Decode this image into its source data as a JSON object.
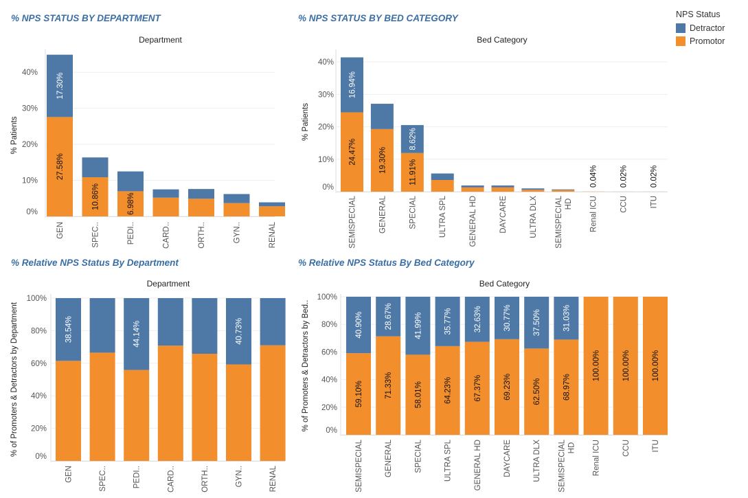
{
  "colors": {
    "detractor": "#4e79a7",
    "promotor": "#f28e2b"
  },
  "legend": {
    "title": "NPS Status",
    "items": [
      "Detractor",
      "Promotor"
    ]
  },
  "panels": {
    "p1_title": "% NPS STATUS BY DEPARTMENT",
    "p2_title": "% NPS STATUS BY BED CATEGORY",
    "p3_title": "% Relative NPS Status By Department",
    "p4_title": "% Relative NPS Status By Bed Category"
  },
  "chart_data": [
    {
      "type": "bar",
      "stacked": true,
      "title": "% NPS STATUS BY DEPARTMENT",
      "xlabel": "Department",
      "ylabel": "% Patients",
      "ylim": [
        0,
        45
      ],
      "yticks": [
        "0%",
        "10%",
        "20%",
        "30%",
        "40%"
      ],
      "categories": [
        "GEN",
        "SPEC..",
        "PEDI..",
        "CARD..",
        "ORTH..",
        "GYN..",
        "RENAL"
      ],
      "series": [
        {
          "name": "Promotor",
          "values": [
            27.58,
            10.86,
            6.98,
            5.2,
            4.9,
            3.7,
            2.8
          ]
        },
        {
          "name": "Detractor",
          "values": [
            17.3,
            5.5,
            5.5,
            2.3,
            2.7,
            2.5,
            1.1
          ]
        }
      ],
      "labels": {
        "Promotor": [
          "27.58%",
          "10.86%",
          "6.98%",
          "",
          "",
          "",
          ""
        ],
        "Detractor": [
          "17.30%",
          "",
          "",
          "",
          "",
          "",
          ""
        ]
      }
    },
    {
      "type": "bar",
      "stacked": true,
      "title": "% NPS STATUS BY BED CATEGORY",
      "xlabel": "Bed Category",
      "ylabel": "% Patients",
      "ylim": [
        0,
        43
      ],
      "yticks": [
        "0%",
        "10%",
        "20%",
        "30%",
        "40%"
      ],
      "categories": [
        "SEMISPECIAL",
        "GENERAL",
        "SPECIAL",
        "ULTRA SPL",
        "GENERAL HD",
        "DAYCARE",
        "ULTRA DLX",
        "SEMISPECIAL HD",
        "Renal ICU",
        "CCU",
        "ITU"
      ],
      "series": [
        {
          "name": "Promotor",
          "values": [
            24.47,
            19.3,
            11.91,
            3.6,
            1.3,
            1.3,
            0.6,
            0.5,
            0.04,
            0.02,
            0.02
          ]
        },
        {
          "name": "Detractor",
          "values": [
            16.94,
            7.8,
            8.62,
            2.0,
            0.6,
            0.6,
            0.4,
            0.2,
            0,
            0,
            0
          ]
        }
      ],
      "labels": {
        "Promotor": [
          "24.47%",
          "19.30%",
          "11.91%",
          "",
          "",
          "",
          "",
          "",
          "0.04%",
          "0.02%",
          "0.02%"
        ],
        "Detractor": [
          "16.94%",
          "",
          "8.62%",
          "",
          "",
          "",
          "",
          "",
          "",
          "",
          ""
        ]
      }
    },
    {
      "type": "bar",
      "stacked": true,
      "title": "% Relative NPS Status By Department",
      "xlabel": "Department",
      "ylabel": "% of Promoters & Detractors by Department",
      "ylim": [
        0,
        100
      ],
      "yticks": [
        "0%",
        "20%",
        "40%",
        "60%",
        "80%",
        "100%"
      ],
      "categories": [
        "GEN",
        "SPEC..",
        "PEDI..",
        "CARD..",
        "ORTH..",
        "GYN..",
        "RENAL"
      ],
      "series": [
        {
          "name": "Promotor",
          "values": [
            61.46,
            66.5,
            55.86,
            70.8,
            65.8,
            59.27,
            71.0
          ]
        },
        {
          "name": "Detractor",
          "values": [
            38.54,
            33.5,
            44.14,
            29.2,
            34.2,
            40.73,
            29.0
          ]
        }
      ],
      "labels": {
        "Promotor": [
          "",
          "",
          "",
          "",
          "",
          "",
          ""
        ],
        "Detractor": [
          "38.54%",
          "",
          "44.14%",
          "",
          "",
          "40.73%",
          ""
        ]
      }
    },
    {
      "type": "bar",
      "stacked": true,
      "title": "% Relative NPS Status By Bed Category",
      "xlabel": "Bed Category",
      "ylabel": "% of Promoters & Detractors by Bed..",
      "ylim": [
        0,
        100
      ],
      "yticks": [
        "0%",
        "20%",
        "40%",
        "60%",
        "80%",
        "100%"
      ],
      "categories": [
        "SEMISPECIAL",
        "GENERAL",
        "SPECIAL",
        "ULTRA SPL",
        "GENERAL HD",
        "DAYCARE",
        "ULTRA DLX",
        "SEMISPECIAL HD",
        "Renal ICU",
        "CCU",
        "ITU"
      ],
      "series": [
        {
          "name": "Promotor",
          "values": [
            59.1,
            71.33,
            58.01,
            64.23,
            67.37,
            69.23,
            62.5,
            68.97,
            100,
            100,
            100
          ]
        },
        {
          "name": "Detractor",
          "values": [
            40.9,
            28.67,
            41.99,
            35.77,
            32.63,
            30.77,
            37.5,
            31.03,
            0,
            0,
            0
          ]
        }
      ],
      "labels": {
        "Promotor": [
          "59.10%",
          "71.33%",
          "58.01%",
          "64.23%",
          "67.37%",
          "69.23%",
          "62.50%",
          "68.97%",
          "100.00%",
          "100.00%",
          "100.00%"
        ],
        "Detractor": [
          "40.90%",
          "28.67%",
          "41.99%",
          "35.77%",
          "32.63%",
          "30.77%",
          "37.50%",
          "31.03%",
          "",
          "",
          ""
        ]
      }
    }
  ]
}
